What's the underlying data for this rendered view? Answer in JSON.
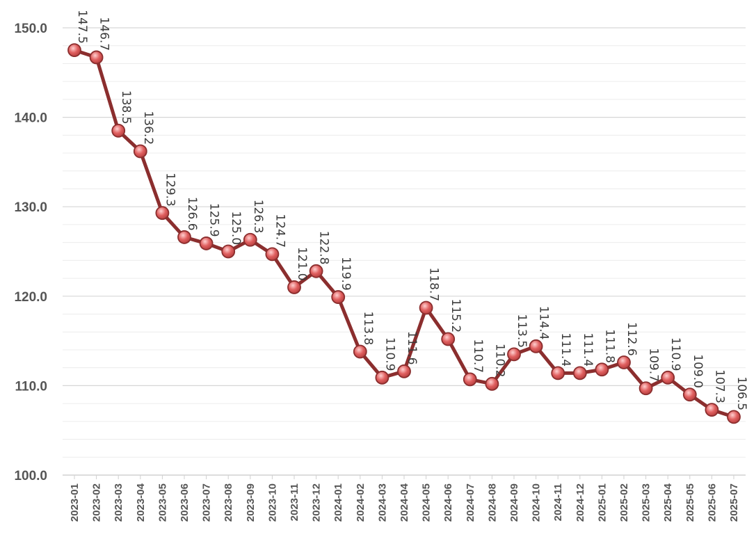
{
  "chart_data": {
    "type": "line",
    "title": "",
    "xlabel": "",
    "ylabel": "",
    "ylim": [
      100,
      150
    ],
    "yticks": [
      "100.0",
      "110.0",
      "120.0",
      "130.0",
      "140.0",
      "150.0"
    ],
    "grid": true,
    "legend": "none",
    "line_color": "#8b2e2e",
    "marker_color": "#e06060",
    "x": [
      "2023-01",
      "2023-02",
      "2023-03",
      "2023-04",
      "2023-05",
      "2023-06",
      "2023-07",
      "2023-08",
      "2023-09",
      "2023-10",
      "2023-11",
      "2023-12",
      "2024-01",
      "2024-02",
      "2024-03",
      "2024-04",
      "2024-05",
      "2024-06",
      "2024-07",
      "2024-08",
      "2024-09",
      "2024-10",
      "2024-11",
      "2024-12",
      "2025-01",
      "2025-02",
      "2025-03",
      "2025-04",
      "2025-05",
      "2025-06",
      "2025-07"
    ],
    "values": [
      147.5,
      146.7,
      138.5,
      136.2,
      129.3,
      126.6,
      125.9,
      125.0,
      126.3,
      124.7,
      121.0,
      122.8,
      119.9,
      113.8,
      110.9,
      111.6,
      118.7,
      115.2,
      110.7,
      110.2,
      113.5,
      114.4,
      111.4,
      111.4,
      111.8,
      112.6,
      109.7,
      110.9,
      109.0,
      107.3,
      106.5
    ],
    "data_labels": [
      "147.5",
      "146.7",
      "138.5",
      "136.2",
      "129.3",
      "126.6",
      "125.9",
      "125.0",
      "126.3",
      "124.7",
      "121.0",
      "122.8",
      "119.9",
      "113.8",
      "110.9",
      "111.6",
      "118.7",
      "115.2",
      "110.7",
      "110.2",
      "113.5",
      "114.4",
      "111.4",
      "111.4",
      "111.8",
      "112.6",
      "109.7",
      "110.9",
      "109.0",
      "107.3",
      "106.5"
    ]
  }
}
